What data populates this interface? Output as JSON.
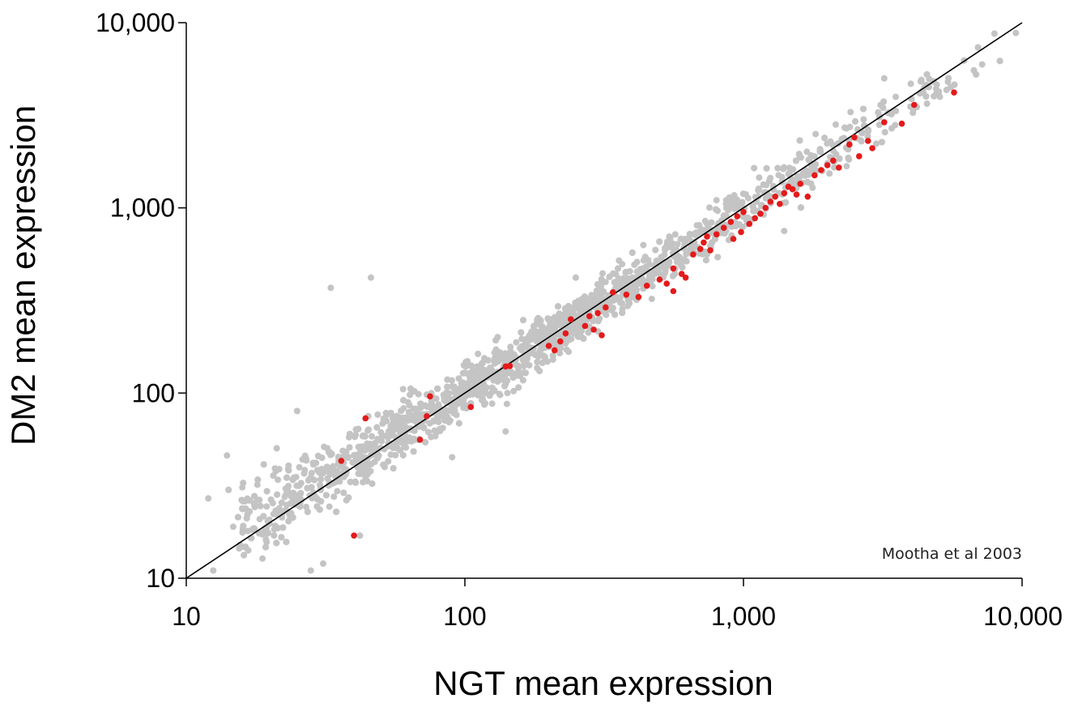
{
  "chart_data": {
    "type": "scatter",
    "title": "",
    "xlabel": "NGT mean expression",
    "ylabel": "DM2 mean expression",
    "x_scale": "log",
    "y_scale": "log",
    "xlim": [
      10,
      10000
    ],
    "ylim": [
      10,
      10000
    ],
    "x_ticks": [
      {
        "value": 10,
        "label": "10"
      },
      {
        "value": 100,
        "label": "100"
      },
      {
        "value": 1000,
        "label": "1,000"
      },
      {
        "value": 10000,
        "label": "10,000"
      }
    ],
    "y_ticks": [
      {
        "value": 10,
        "label": "10"
      },
      {
        "value": 100,
        "label": "100"
      },
      {
        "value": 1000,
        "label": "1,000"
      },
      {
        "value": 10000,
        "label": "10,000"
      }
    ],
    "grid": false,
    "legend": "none",
    "annotation": "Mootha et al 2003",
    "reference_line": {
      "from": [
        10,
        10
      ],
      "to": [
        10000,
        10000
      ],
      "color": "#000000"
    },
    "colors": {
      "background_points": "#c4c4c4",
      "highlight_points": "#e41a1a",
      "line": "#000000"
    },
    "background_cloud": {
      "description_of_band": "thousands of genes clustered along the diagonal",
      "band": [
        [
          12,
          9,
          30
        ],
        [
          20,
          13,
          44
        ],
        [
          40,
          27,
          70
        ],
        [
          100,
          70,
          150
        ],
        [
          300,
          210,
          420
        ],
        [
          1000,
          700,
          1400
        ],
        [
          3000,
          2100,
          4100
        ],
        [
          9000,
          6600,
          10500
        ]
      ],
      "outliers": [
        [
          33,
          370
        ],
        [
          46,
          420
        ],
        [
          12,
          27
        ],
        [
          14,
          46
        ],
        [
          18,
          32
        ],
        [
          25,
          80
        ],
        [
          31,
          12
        ],
        [
          42,
          17
        ],
        [
          60,
          105
        ],
        [
          140,
          62
        ],
        [
          45,
          75
        ],
        [
          28,
          11
        ],
        [
          90,
          45
        ],
        [
          250,
          420
        ],
        [
          800,
          1100
        ],
        [
          1400,
          750
        ],
        [
          3200,
          5000
        ],
        [
          9500,
          8800
        ],
        [
          12.5,
          11
        ]
      ]
    },
    "series": [
      {
        "color": "#e41a1a",
        "points": [
          [
            36,
            43
          ],
          [
            44,
            73
          ],
          [
            40,
            17
          ],
          [
            69,
            56
          ],
          [
            73,
            75
          ],
          [
            75,
            96
          ],
          [
            105,
            84
          ],
          [
            140,
            139
          ],
          [
            145,
            140
          ],
          [
            200,
            180
          ],
          [
            210,
            170
          ],
          [
            220,
            190
          ],
          [
            230,
            210
          ],
          [
            240,
            250
          ],
          [
            270,
            230
          ],
          [
            280,
            260
          ],
          [
            300,
            270
          ],
          [
            290,
            220
          ],
          [
            310,
            205
          ],
          [
            320,
            290
          ],
          [
            340,
            350
          ],
          [
            380,
            340
          ],
          [
            420,
            330
          ],
          [
            450,
            380
          ],
          [
            500,
            410
          ],
          [
            530,
            390
          ],
          [
            560,
            470
          ],
          [
            560,
            355
          ],
          [
            600,
            440
          ],
          [
            620,
            420
          ],
          [
            660,
            560
          ],
          [
            700,
            600
          ],
          [
            720,
            650
          ],
          [
            740,
            700
          ],
          [
            760,
            590
          ],
          [
            800,
            720
          ],
          [
            850,
            780
          ],
          [
            900,
            840
          ],
          [
            920,
            680
          ],
          [
            950,
            900
          ],
          [
            980,
            740
          ],
          [
            1000,
            950
          ],
          [
            1050,
            820
          ],
          [
            1100,
            880
          ],
          [
            1150,
            930
          ],
          [
            1200,
            1000
          ],
          [
            1250,
            1080
          ],
          [
            1300,
            1150
          ],
          [
            1350,
            1050
          ],
          [
            1400,
            1200
          ],
          [
            1450,
            1300
          ],
          [
            1500,
            1260
          ],
          [
            1550,
            1180
          ],
          [
            1600,
            1350
          ],
          [
            1700,
            1150
          ],
          [
            1800,
            1500
          ],
          [
            1900,
            1600
          ],
          [
            2000,
            1700
          ],
          [
            2100,
            1800
          ],
          [
            2200,
            1650
          ],
          [
            2400,
            2200
          ],
          [
            2500,
            2400
          ],
          [
            2600,
            1900
          ],
          [
            2800,
            2300
          ],
          [
            2900,
            2100
          ],
          [
            3200,
            2900
          ],
          [
            3700,
            2850
          ],
          [
            4100,
            3600
          ],
          [
            5700,
            4200
          ]
        ]
      }
    ]
  }
}
